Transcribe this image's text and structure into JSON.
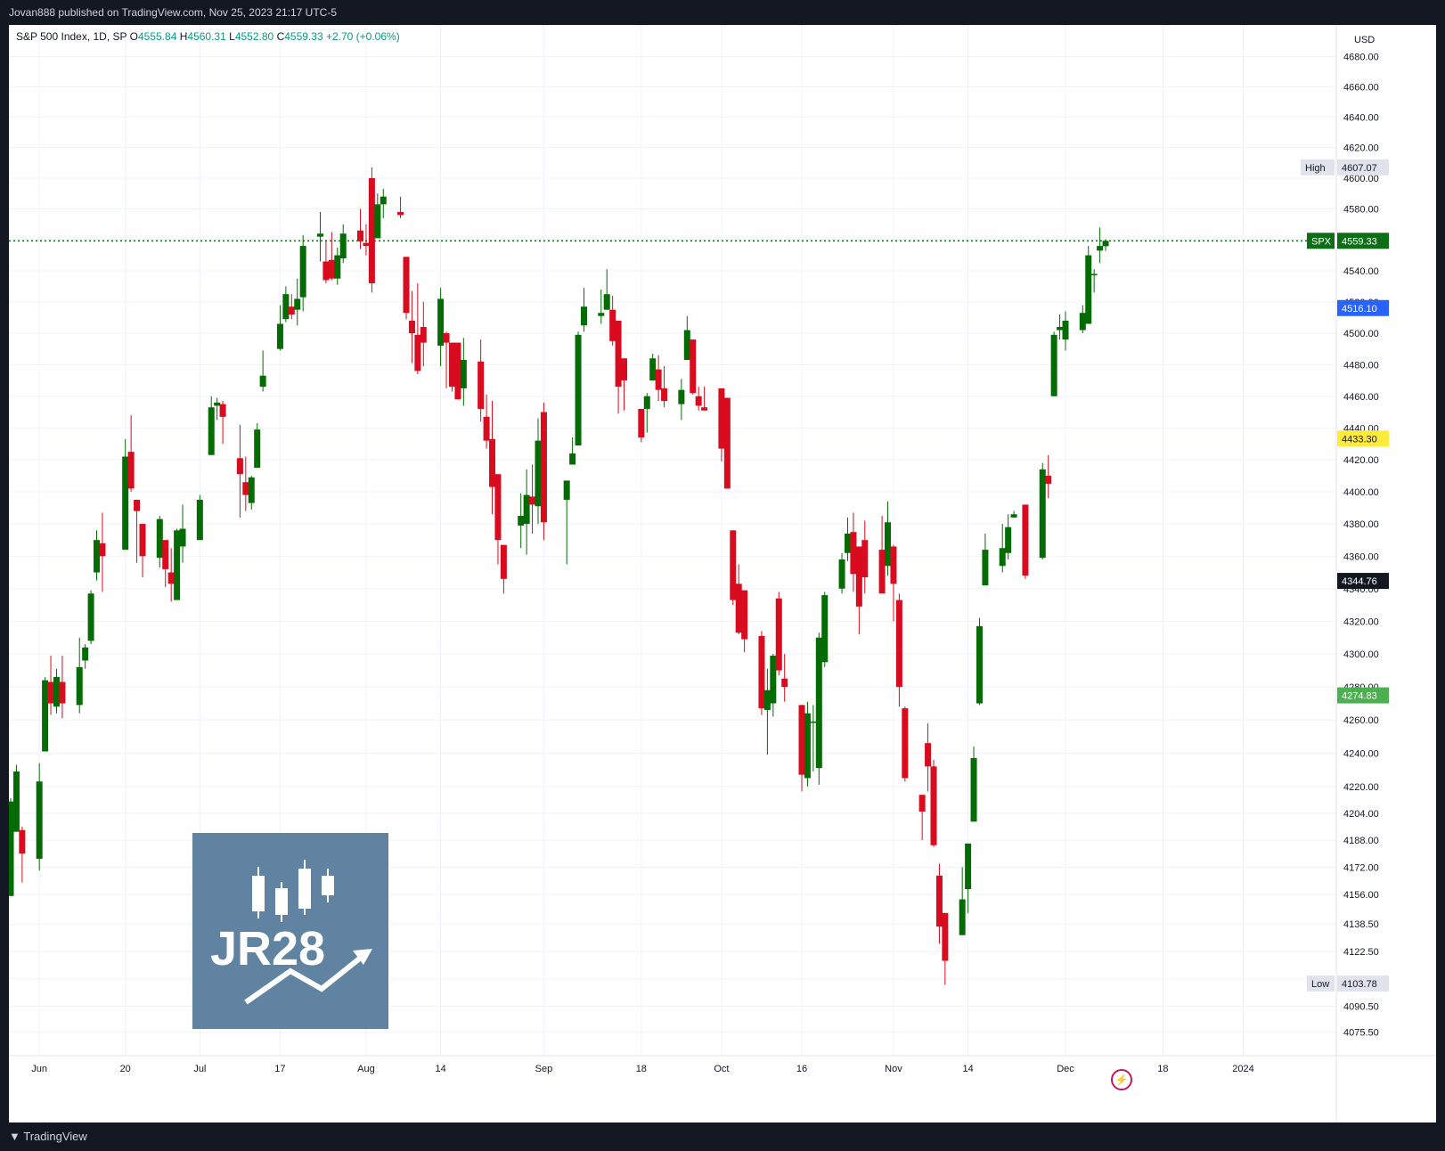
{
  "header": {
    "published_text": "Jovan888 published on TradingView.com, Nov 25, 2023 21:17 UTC-5"
  },
  "legend": {
    "symbol_text": "S&P 500 Index, 1D, SP",
    "open_label": "O",
    "open_value": "4555.84",
    "high_label": "H",
    "high_value": "4560.31",
    "low_label": "L",
    "low_value": "4552.80",
    "close_label": "C",
    "close_value": "4559.33",
    "change": "+2.70 (+0.06%)"
  },
  "footer": {
    "brand": "TradingView"
  },
  "watermark": {
    "text": "JR28"
  },
  "colors": {
    "up": "#056c05",
    "down": "#d80c1e",
    "price_line": "#0e6e17",
    "high_low_badge_bg": "#e0e3eb",
    "blue_badge": "#2962ff",
    "yellow_badge": "#ffeb3b",
    "green_badge": "#4caf50",
    "black_badge": "#131722"
  },
  "chart_data": {
    "type": "candlestick",
    "symbol": "SPX",
    "currency": "USD",
    "y_scale": "log",
    "ylim": [
      4062,
      4701
    ],
    "y_ticks": [
      "4075.50",
      "4090.50",
      "4106.50",
      "4122.50",
      "4138.50",
      "4156.00",
      "4172.00",
      "4188.00",
      "4204.00",
      "4220.00",
      "4240.00",
      "4260.00",
      "4280.00",
      "4300.00",
      "4320.00",
      "4340.00",
      "4360.00",
      "4380.00",
      "4400.00",
      "4420.00",
      "4440.00",
      "4460.00",
      "4480.00",
      "4500.00",
      "4520.00",
      "4540.00",
      "4560.00",
      "4580.00",
      "4600.00",
      "4620.00",
      "4640.00",
      "4660.00",
      "4680.00"
    ],
    "x_ticks": [
      "Jun",
      "20",
      "Jul",
      "17",
      "Aug",
      "14",
      "Sep",
      "18",
      "Oct",
      "16",
      "Nov",
      "14",
      "Dec",
      "18",
      "2024"
    ],
    "markers": [
      {
        "label": "High",
        "value": "4607.07",
        "kind": "high"
      },
      {
        "label": "SPX",
        "value": "4559.33",
        "kind": "last"
      },
      {
        "label": "",
        "value": "4516.10",
        "kind": "blue"
      },
      {
        "label": "",
        "value": "4433.30",
        "kind": "yellow"
      },
      {
        "label": "",
        "value": "4344.76",
        "kind": "black"
      },
      {
        "label": "",
        "value": "4274.83",
        "kind": "green"
      },
      {
        "label": "Low",
        "value": "4103.78",
        "kind": "low"
      }
    ],
    "ohlc": [
      {
        "date": "2023-05-31",
        "o": 4155,
        "h": 4213,
        "l": 4155,
        "c": 4211
      },
      {
        "date": "2023-06-01",
        "o": 4193,
        "h": 4233,
        "l": 4193,
        "c": 4229
      },
      {
        "date": "2023-06-02",
        "o": 4194,
        "h": 4196,
        "l": 4163,
        "c": 4180
      },
      {
        "date": "2023-06-05",
        "o": 4177,
        "h": 4234,
        "l": 4170,
        "c": 4223
      },
      {
        "date": "2023-06-06",
        "o": 4241,
        "h": 4286,
        "l": 4241,
        "c": 4284
      },
      {
        "date": "2023-06-07",
        "o": 4283,
        "h": 4299,
        "l": 4263,
        "c": 4270
      },
      {
        "date": "2023-06-08",
        "o": 4268,
        "h": 4291,
        "l": 4264,
        "c": 4286
      },
      {
        "date": "2023-06-09",
        "o": 4283,
        "h": 4299,
        "l": 4261,
        "c": 4270
      },
      {
        "date": "2023-06-12",
        "o": 4269,
        "h": 4310,
        "l": 4264,
        "c": 4292
      },
      {
        "date": "2023-06-13",
        "o": 4296,
        "h": 4306,
        "l": 4291,
        "c": 4304
      },
      {
        "date": "2023-06-14",
        "o": 4308,
        "h": 4339,
        "l": 4306,
        "c": 4337
      },
      {
        "date": "2023-06-15",
        "o": 4350,
        "h": 4376,
        "l": 4345,
        "c": 4370
      },
      {
        "date": "2023-06-16",
        "o": 4368,
        "h": 4387,
        "l": 4338,
        "c": 4360
      },
      {
        "date": "2023-06-20",
        "o": 4364,
        "h": 4433,
        "l": 4364,
        "c": 4422
      },
      {
        "date": "2023-06-21",
        "o": 4425,
        "h": 4448,
        "l": 4400,
        "c": 4402
      },
      {
        "date": "2023-06-22",
        "o": 4395,
        "h": 4395,
        "l": 4356,
        "c": 4388
      },
      {
        "date": "2023-06-23",
        "o": 4380,
        "h": 4380,
        "l": 4347,
        "c": 4360
      },
      {
        "date": "2023-06-26",
        "o": 4359,
        "h": 4385,
        "l": 4353,
        "c": 4383
      },
      {
        "date": "2023-06-27",
        "o": 4370,
        "h": 4370,
        "l": 4341,
        "c": 4352
      },
      {
        "date": "2023-06-28",
        "o": 4350,
        "h": 4365,
        "l": 4332,
        "c": 4343
      },
      {
        "date": "2023-06-29",
        "o": 4333,
        "h": 4377,
        "l": 4333,
        "c": 4376
      },
      {
        "date": "2023-06-30",
        "o": 4366,
        "h": 4392,
        "l": 4356,
        "c": 4377
      },
      {
        "date": "2023-07-03",
        "o": 4370,
        "h": 4398,
        "l": 4370,
        "c": 4395
      },
      {
        "date": "2023-07-05",
        "o": 4423,
        "h": 4460,
        "l": 4423,
        "c": 4453
      },
      {
        "date": "2023-07-06",
        "o": 4454,
        "h": 4459,
        "l": 4445,
        "c": 4456
      },
      {
        "date": "2023-07-07",
        "o": 4455,
        "h": 4457,
        "l": 4430,
        "c": 4447
      },
      {
        "date": "2023-07-10",
        "o": 4421,
        "h": 4442,
        "l": 4384,
        "c": 4411
      },
      {
        "date": "2023-07-11",
        "o": 4406,
        "h": 4422,
        "l": 4388,
        "c": 4398
      },
      {
        "date": "2023-07-12",
        "o": 4393,
        "h": 4410,
        "l": 4389,
        "c": 4409
      },
      {
        "date": "2023-07-13",
        "o": 4415,
        "h": 4443,
        "l": 4415,
        "c": 4439
      },
      {
        "date": "2023-07-14",
        "o": 4466,
        "h": 4489,
        "l": 4463,
        "c": 4473
      },
      {
        "date": "2023-07-17",
        "o": 4490,
        "h": 4518,
        "l": 4489,
        "c": 4506
      },
      {
        "date": "2023-07-18",
        "o": 4509,
        "h": 4530,
        "l": 4507,
        "c": 4525
      },
      {
        "date": "2023-07-19",
        "o": 4517,
        "h": 4525,
        "l": 4509,
        "c": 4512
      },
      {
        "date": "2023-07-20",
        "o": 4515,
        "h": 4535,
        "l": 4505,
        "c": 4522
      },
      {
        "date": "2023-07-21",
        "o": 4523,
        "h": 4563,
        "l": 4514,
        "c": 4556
      },
      {
        "date": "2023-07-24",
        "o": 4562,
        "h": 4578,
        "l": 4546,
        "c": 4564
      },
      {
        "date": "2023-07-25",
        "o": 4546,
        "h": 4560,
        "l": 4532,
        "c": 4534
      },
      {
        "date": "2023-07-26",
        "o": 4547,
        "h": 4565,
        "l": 4534,
        "c": 4535
      },
      {
        "date": "2023-07-27",
        "o": 4535,
        "h": 4555,
        "l": 4531,
        "c": 4550
      },
      {
        "date": "2023-07-28",
        "o": 4548,
        "h": 4570,
        "l": 4545,
        "c": 4564
      },
      {
        "date": "2023-07-31",
        "o": 4566,
        "h": 4580,
        "l": 4554,
        "c": 4559
      },
      {
        "date": "2023-08-01",
        "o": 4558,
        "h": 4570,
        "l": 4550,
        "c": 4556
      },
      {
        "date": "2023-08-02",
        "o": 4600,
        "h": 4607,
        "l": 4526,
        "c": 4532
      },
      {
        "date": "2023-08-03",
        "o": 4561,
        "h": 4590,
        "l": 4561,
        "c": 4583
      },
      {
        "date": "2023-08-04",
        "o": 4583,
        "h": 4593,
        "l": 4574,
        "c": 4588
      },
      {
        "date": "2023-08-07",
        "o": 4578,
        "h": 4588,
        "l": 4574,
        "c": 4576
      },
      {
        "date": "2023-08-08",
        "o": 4549,
        "h": 4549,
        "l": 4509,
        "c": 4513
      },
      {
        "date": "2023-08-09",
        "o": 4508,
        "h": 4527,
        "l": 4481,
        "c": 4500
      },
      {
        "date": "2023-08-10",
        "o": 4499,
        "h": 4532,
        "l": 4474,
        "c": 4476
      },
      {
        "date": "2023-08-11",
        "o": 4504,
        "h": 4520,
        "l": 4479,
        "c": 4494
      },
      {
        "date": "2023-08-14",
        "o": 4492,
        "h": 4529,
        "l": 4479,
        "c": 4522
      },
      {
        "date": "2023-08-15",
        "o": 4500,
        "h": 4501,
        "l": 4465,
        "c": 4494
      },
      {
        "date": "2023-08-16",
        "o": 4494,
        "h": 4494,
        "l": 4463,
        "c": 4466
      },
      {
        "date": "2023-08-17",
        "o": 4494,
        "h": 4494,
        "l": 4458,
        "c": 4458
      },
      {
        "date": "2023-08-18",
        "o": 4465,
        "h": 4497,
        "l": 4454,
        "c": 4483
      },
      {
        "date": "2023-08-21",
        "o": 4482,
        "h": 4496,
        "l": 4444,
        "c": 4452
      },
      {
        "date": "2023-08-22",
        "o": 4447,
        "h": 4461,
        "l": 4427,
        "c": 4432
      },
      {
        "date": "2023-08-23",
        "o": 4433,
        "h": 4457,
        "l": 4386,
        "c": 4403
      },
      {
        "date": "2023-08-24",
        "o": 4411,
        "h": 4411,
        "l": 4355,
        "c": 4370
      },
      {
        "date": "2023-08-25",
        "o": 4367,
        "h": 4367,
        "l": 4337,
        "c": 4346
      },
      {
        "date": "2023-08-28",
        "o": 4379,
        "h": 4399,
        "l": 4365,
        "c": 4385
      },
      {
        "date": "2023-08-29",
        "o": 4380,
        "h": 4414,
        "l": 4361,
        "c": 4398
      },
      {
        "date": "2023-08-30",
        "o": 4397,
        "h": 4417,
        "l": 4374,
        "c": 4392
      },
      {
        "date": "2023-08-31",
        "o": 4391,
        "h": 4446,
        "l": 4380,
        "c": 4432
      },
      {
        "date": "2023-09-01",
        "o": 4450,
        "h": 4456,
        "l": 4370,
        "c": 4381
      },
      {
        "date": "2023-09-05",
        "o": 4395,
        "h": 4407,
        "l": 4355,
        "c": 4407
      },
      {
        "date": "2023-09-06",
        "o": 4417,
        "h": 4434,
        "l": 4417,
        "c": 4424
      },
      {
        "date": "2023-09-07",
        "o": 4429,
        "h": 4501,
        "l": 4429,
        "c": 4499
      },
      {
        "date": "2023-09-08",
        "o": 4505,
        "h": 4529,
        "l": 4501,
        "c": 4517
      },
      {
        "date": "2023-09-11",
        "o": 4511,
        "h": 4528,
        "l": 4506,
        "c": 4513
      },
      {
        "date": "2023-09-12",
        "o": 4515,
        "h": 4541,
        "l": 4515,
        "c": 4525
      },
      {
        "date": "2023-09-13",
        "o": 4515,
        "h": 4524,
        "l": 4492,
        "c": 4495
      },
      {
        "date": "2023-09-14",
        "o": 4508,
        "h": 4508,
        "l": 4449,
        "c": 4466
      },
      {
        "date": "2023-09-15",
        "o": 4484,
        "h": 4484,
        "l": 4451,
        "c": 4470
      },
      {
        "date": "2023-09-18",
        "o": 4452,
        "h": 4452,
        "l": 4431,
        "c": 4434
      },
      {
        "date": "2023-09-19",
        "o": 4452,
        "h": 4462,
        "l": 4437,
        "c": 4460
      },
      {
        "date": "2023-09-20",
        "o": 4470,
        "h": 4487,
        "l": 4470,
        "c": 4484
      },
      {
        "date": "2023-09-21",
        "o": 4477,
        "h": 4486,
        "l": 4457,
        "c": 4464
      },
      {
        "date": "2023-09-22",
        "o": 4465,
        "h": 4479,
        "l": 4453,
        "c": 4457
      },
      {
        "date": "2023-09-25",
        "o": 4455,
        "h": 4471,
        "l": 4445,
        "c": 4464
      },
      {
        "date": "2023-09-26",
        "o": 4483,
        "h": 4511,
        "l": 4483,
        "c": 4502
      },
      {
        "date": "2023-09-27",
        "o": 4496,
        "h": 4496,
        "l": 4461,
        "c": 4462
      },
      {
        "date": "2023-09-28",
        "o": 4460,
        "h": 4466,
        "l": 4451,
        "c": 4454
      },
      {
        "date": "2023-09-29",
        "o": 4453,
        "h": 4466,
        "l": 4451,
        "c": 4451
      },
      {
        "date": "2023-10-02",
        "o": 4465,
        "h": 4465,
        "l": 4419,
        "c": 4427
      },
      {
        "date": "2023-10-03",
        "o": 4459,
        "h": 4459,
        "l": 4402,
        "c": 4402
      },
      {
        "date": "2023-10-04",
        "o": 4376,
        "h": 4376,
        "l": 4330,
        "c": 4333
      },
      {
        "date": "2023-10-05",
        "o": 4343,
        "h": 4355,
        "l": 4312,
        "c": 4313
      },
      {
        "date": "2023-10-06",
        "o": 4339,
        "h": 4339,
        "l": 4301,
        "c": 4309
      },
      {
        "date": "2023-10-09",
        "o": 4311,
        "h": 4314,
        "l": 4263,
        "c": 4267
      },
      {
        "date": "2023-10-10",
        "o": 4266,
        "h": 4291,
        "l": 4239,
        "c": 4278
      },
      {
        "date": "2023-10-11",
        "o": 4270,
        "h": 4300,
        "l": 4262,
        "c": 4299
      },
      {
        "date": "2023-10-12",
        "o": 4334,
        "h": 4338,
        "l": 4287,
        "c": 4290
      },
      {
        "date": "2023-10-13",
        "o": 4285,
        "h": 4300,
        "l": 4271,
        "c": 4280
      },
      {
        "date": "2023-10-16",
        "o": 4269,
        "h": 4269,
        "l": 4217,
        "c": 4227
      },
      {
        "date": "2023-10-17",
        "o": 4225,
        "h": 4271,
        "l": 4220,
        "c": 4264
      },
      {
        "date": "2023-10-18",
        "o": 4259,
        "h": 4269,
        "l": 4229,
        "c": 4259
      },
      {
        "date": "2023-10-19",
        "o": 4231,
        "h": 4313,
        "l": 4221,
        "c": 4310
      },
      {
        "date": "2023-10-20",
        "o": 4295,
        "h": 4338,
        "l": 4292,
        "c": 4336
      },
      {
        "date": "2023-10-23",
        "o": 4340,
        "h": 4362,
        "l": 4337,
        "c": 4358
      },
      {
        "date": "2023-10-24",
        "o": 4362,
        "h": 4384,
        "l": 4357,
        "c": 4374
      },
      {
        "date": "2023-10-25",
        "o": 4375,
        "h": 4387,
        "l": 4338,
        "c": 4349
      },
      {
        "date": "2023-10-26",
        "o": 4366,
        "h": 4366,
        "l": 4312,
        "c": 4329
      },
      {
        "date": "2023-10-27",
        "o": 4370,
        "h": 4382,
        "l": 4337,
        "c": 4347
      },
      {
        "date": "2023-10-30",
        "o": 4364,
        "h": 4385,
        "l": 4337,
        "c": 4337
      },
      {
        "date": "2023-10-31",
        "o": 4354,
        "h": 4394,
        "l": 4348,
        "c": 4381
      },
      {
        "date": "2023-11-01",
        "o": 4366,
        "h": 4367,
        "l": 4320,
        "c": 4343
      },
      {
        "date": "2023-11-02",
        "o": 4333,
        "h": 4337,
        "l": 4268,
        "c": 4280
      },
      {
        "date": "2023-11-03",
        "o": 4267,
        "h": 4268,
        "l": 4223,
        "c": 4225
      },
      {
        "date": "2023-11-06",
        "o": 4215,
        "h": 4215,
        "l": 4188,
        "c": 4205
      },
      {
        "date": "2023-11-07",
        "o": 4246,
        "h": 4258,
        "l": 4217,
        "c": 4232
      },
      {
        "date": "2023-11-08",
        "o": 4232,
        "h": 4236,
        "l": 4184,
        "c": 4185
      },
      {
        "date": "2023-11-09",
        "o": 4167,
        "h": 4174,
        "l": 4127,
        "c": 4137
      },
      {
        "date": "2023-11-10",
        "o": 4145,
        "h": 4145,
        "l": 4103,
        "c": 4117
      },
      {
        "date": "2023-11-13",
        "o": 4132,
        "h": 4172,
        "l": 4132,
        "c": 4153
      },
      {
        "date": "2023-11-14",
        "o": 4159,
        "h": 4186,
        "l": 4145,
        "c": 4186
      },
      {
        "date": "2023-11-15",
        "o": 4199,
        "h": 4244,
        "l": 4200,
        "c": 4237
      },
      {
        "date": "2023-11-16",
        "o": 4270,
        "h": 4322,
        "l": 4269,
        "c": 4317
      },
      {
        "date": "2023-11-17",
        "o": 4342,
        "h": 4374,
        "l": 4342,
        "c": 4364
      },
      {
        "date": "2023-11-20",
        "o": 4354,
        "h": 4380,
        "l": 4350,
        "c": 4365
      },
      {
        "date": "2023-11-21",
        "o": 4362,
        "h": 4386,
        "l": 4358,
        "c": 4378
      },
      {
        "date": "2023-11-22",
        "o": 4384,
        "h": 4388,
        "l": 4384,
        "c": 4386
      },
      {
        "date": "2023-11-24",
        "o": 4392,
        "h": 4392,
        "l": 4346,
        "c": 4348
      },
      {
        "date": "2023-11-27",
        "o": 4359,
        "h": 4418,
        "l": 4358,
        "c": 4414
      },
      {
        "date": "2023-11-28",
        "o": 4410,
        "h": 4423,
        "l": 4396,
        "c": 4405
      },
      {
        "date": "2023-11-29",
        "o": 4460,
        "h": 4501,
        "l": 4460,
        "c": 4499
      },
      {
        "date": "2023-11-30",
        "o": 4502,
        "h": 4512,
        "l": 4496,
        "c": 4504
      },
      {
        "date": "2023-12-01",
        "o": 4496,
        "h": 4514,
        "l": 4489,
        "c": 4508
      },
      {
        "date": "2023-12-04",
        "o": 4502,
        "h": 4518,
        "l": 4500,
        "c": 4513
      },
      {
        "date": "2023-12-05",
        "o": 4506,
        "h": 4556,
        "l": 4506,
        "c": 4550
      },
      {
        "date": "2023-12-06",
        "o": 4538,
        "h": 4541,
        "l": 4526,
        "c": 4538
      },
      {
        "date": "2023-12-07",
        "o": 4553,
        "h": 4568,
        "l": 4545,
        "c": 4556
      },
      {
        "date": "2023-12-08",
        "o": 4555.84,
        "h": 4560.31,
        "l": 4552.8,
        "c": 4559.33
      }
    ]
  }
}
